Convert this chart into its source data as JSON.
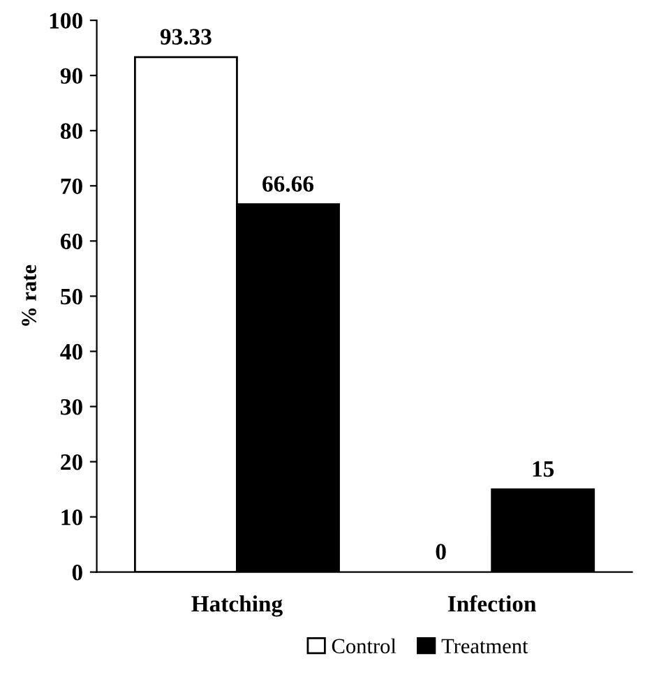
{
  "chart_data": {
    "type": "bar",
    "ylabel": "% rate",
    "categories": [
      "Hatching",
      "Infection"
    ],
    "series": [
      {
        "name": "Control",
        "color": "#ffffff",
        "values": [
          93.33,
          0
        ]
      },
      {
        "name": "Treatment",
        "color": "#000000",
        "values": [
          66.66,
          15
        ]
      }
    ],
    "ylim": [
      0,
      100
    ],
    "yticks": [
      0,
      10,
      20,
      30,
      40,
      50,
      60,
      70,
      80,
      90,
      100
    ],
    "data_labels": true,
    "legend": "bottom",
    "grid": false
  }
}
